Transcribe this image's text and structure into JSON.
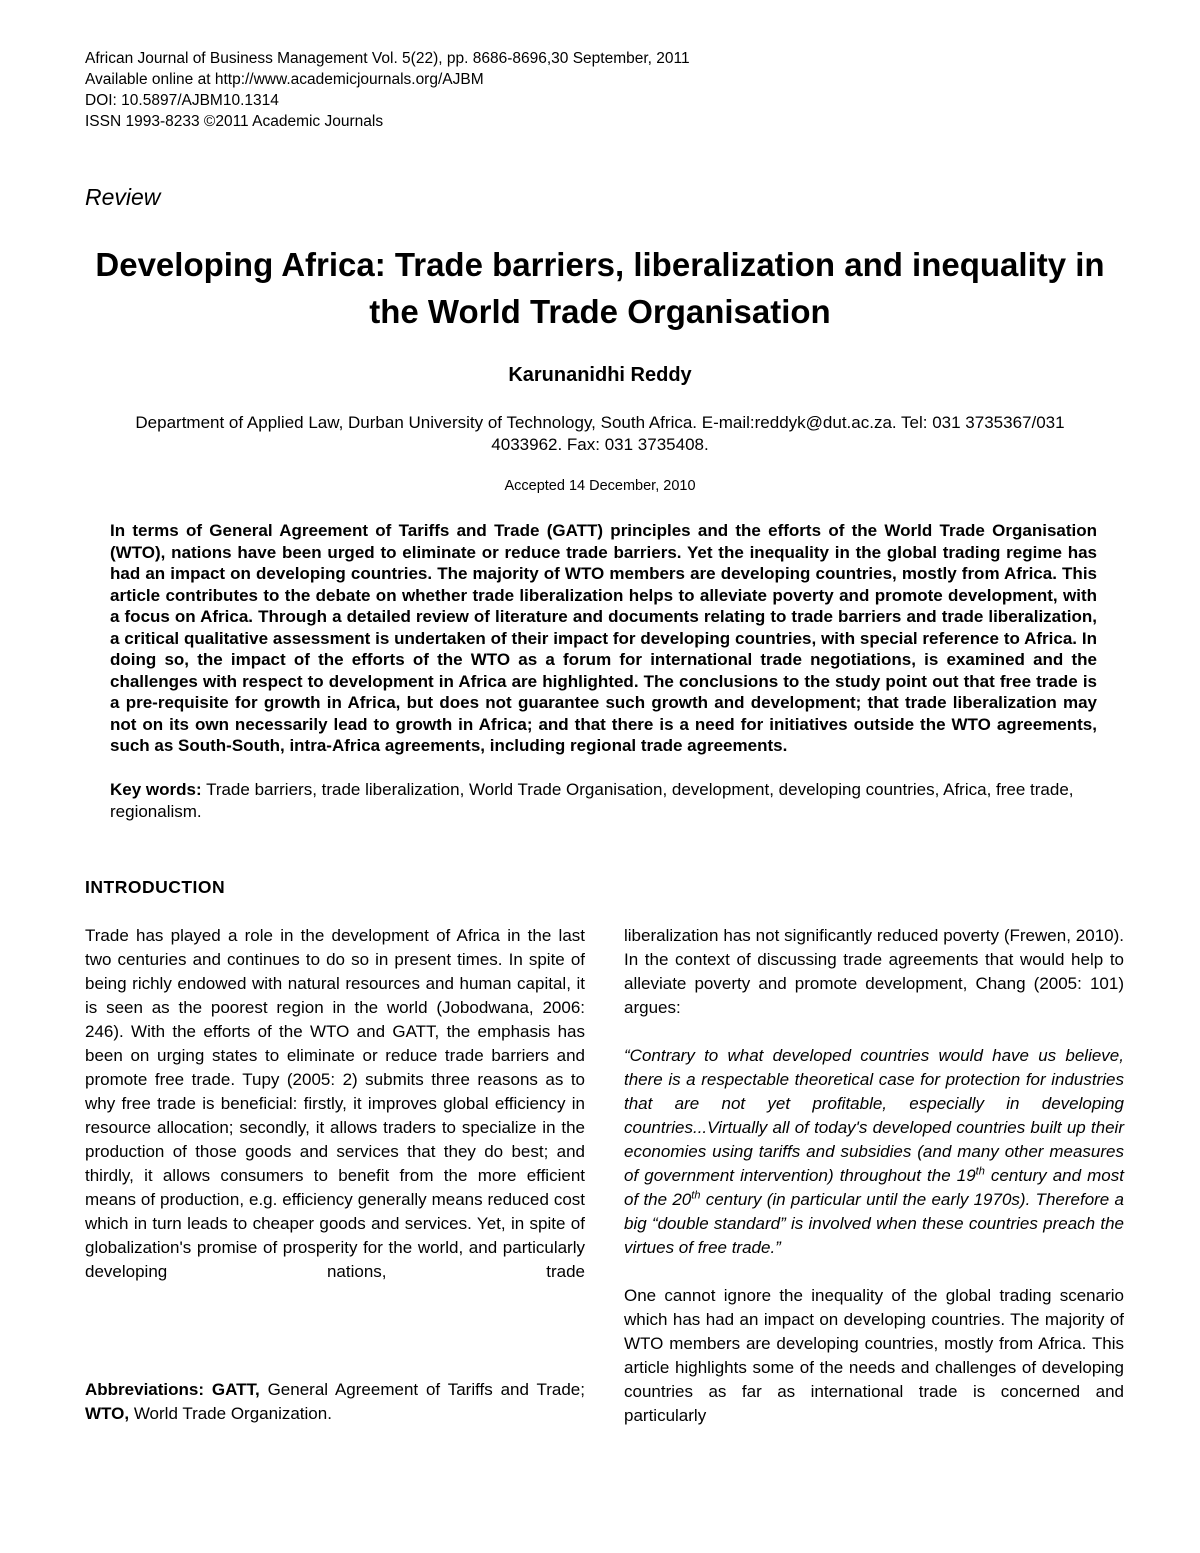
{
  "colors": {
    "text": "#000000",
    "background": "#ffffff"
  },
  "header": {
    "lines": [
      "African Journal of Business Management Vol. 5(22), pp. 8686-8696,30 September, 2011",
      "Available online at http://www.academicjournals.org/AJBM",
      "DOI: 10.5897/AJBM10.1314",
      "ISSN 1993-8233 ©2011 Academic Journals"
    ]
  },
  "review_label": "Review",
  "title": "Developing Africa: Trade barriers, liberalization and inequality in the World Trade Organisation",
  "author": "Karunanidhi Reddy",
  "affiliation": "Department of Applied Law, Durban University of Technology, South Africa. E-mail:reddyk@dut.ac.za. Tel: 031 3735367/031 4033962. Fax: 031 3735408.",
  "accepted": "Accepted 14 December, 2010",
  "abstract": "In terms of General Agreement of Tariffs and Trade (GATT) principles and the efforts of the World Trade Organisation (WTO), nations have been urged to eliminate or reduce trade barriers. Yet the inequality in the global trading regime has had an impact on developing countries. The majority of WTO members are developing countries, mostly from Africa. This article contributes to the debate on whether trade liberalization helps to alleviate poverty and promote development, with a focus on Africa. Through a detailed review of literature and documents relating to trade barriers and trade liberalization, a critical qualitative assessment is undertaken of their impact for developing countries, with special reference to Africa. In doing so, the impact of the efforts of the WTO as a forum for international trade negotiations, is examined and the challenges with respect to development in Africa are highlighted. The conclusions to the study point out that free trade is a pre-requisite for growth in Africa, but does not guarantee such growth and development; that trade liberalization may not on its own necessarily lead to growth in Africa; and that there is a need for initiatives outside the WTO agreements, such as South-South, intra-Africa agreements, including regional trade agreements.",
  "keywords": {
    "label": "Key words:",
    "text": "Trade barriers, trade liberalization, World Trade Organisation, development, developing countries, Africa, free trade, regionalism."
  },
  "introduction": {
    "heading": "INTRODUCTION",
    "left_paragraph": "Trade has played a role in the development of Africa in the last two centuries and continues to do so in present times. In spite of being richly endowed with natural resources and human capital, it is seen as the poorest region in the world (Jobodwana, 2006: 246). With the efforts of the WTO and GATT, the emphasis has been on urging states to eliminate or reduce trade barriers and promote free trade. Tupy (2005: 2) submits three reasons as to why free trade is beneficial: firstly, it improves global efficiency in resource allocation; secondly, it allows traders to specialize in the production of those goods and services that they do best; and thirdly, it allows consumers to benefit from the more efficient means of production, e.g. efficiency generally means reduced cost which in turn leads to cheaper goods and services. Yet, in spite of globalization's promise of prosperity for the world, and particularly developing nations, trade",
    "abbreviations": {
      "label": "Abbreviations: GATT,",
      "text1": "General Agreement of Tariffs and Trade;",
      "label2": "WTO,",
      "text2": "World Trade Organization."
    },
    "right_paragraph_1": "liberalization has not significantly reduced poverty (Frewen, 2010). In the context of discussing trade agreements that would help to alleviate poverty and promote development, Chang (2005: 101) argues:",
    "quote": {
      "part1": "“Contrary to what developed countries would have us believe, there is a respectable theoretical case for protection for industries that are not yet profitable, especially in developing countries...Virtually all of today's developed countries built up their economies using tariffs and subsidies (and many other measures of government intervention) throughout the 19",
      "sup1": "th",
      "part2": " century and most of the 20",
      "sup2": "th",
      "part3": " century (in particular until the early 1970s). Therefore a big “double standard” is involved when these countries preach the virtues of free trade.”"
    },
    "right_paragraph_2": "One cannot ignore the inequality of the global trading scenario which has had an impact on developing countries. The majority of WTO members are developing countries, mostly from Africa. This article highlights some of the needs and challenges of developing countries as far as international trade is concerned and particularly"
  }
}
